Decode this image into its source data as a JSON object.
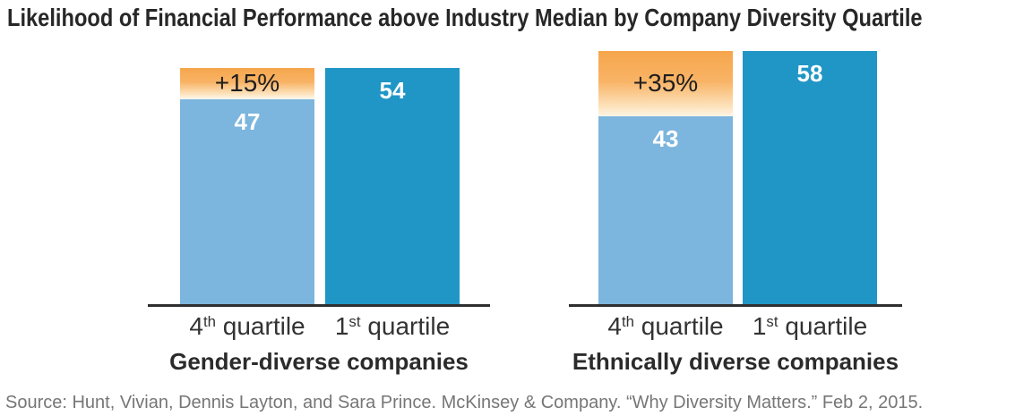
{
  "title": "Likelihood of Financial Performance above Industry Median by Company Diversity Quartile",
  "source": "Source: Hunt, Vivian, Dennis Layton, and Sara Prince. McKinsey & Company. “Why Diversity Matters.” Feb 2, 2015.",
  "colors": {
    "quartile4_bar": "#7cb5dd",
    "quartile1_bar": "#2096c6",
    "delta_gradient_top": "#f6a64c",
    "delta_gradient_bottom": "#ffffff",
    "axis_line": "#2f2f2f",
    "title_text": "#272727",
    "value_text": "#ffffff",
    "delta_text": "#1e1e1e",
    "source_text": "#767676"
  },
  "chart_data": [
    {
      "type": "bar",
      "title": "Gender-diverse companies",
      "categories": [
        "4th quartile",
        "1st quartile"
      ],
      "values": [
        47,
        54
      ],
      "delta_label": "+15%",
      "ylim": [
        0,
        60
      ],
      "bars": [
        {
          "value": 47,
          "value_label": "47",
          "cat_base": "4",
          "cat_sup": "th",
          "cat_word": "quartile"
        },
        {
          "value": 54,
          "value_label": "54",
          "cat_base": "1",
          "cat_sup": "st",
          "cat_word": "quartile"
        }
      ]
    },
    {
      "type": "bar",
      "title": "Ethnically diverse companies",
      "categories": [
        "4th quartile",
        "1st quartile"
      ],
      "values": [
        43,
        58
      ],
      "delta_label": "+35%",
      "ylim": [
        0,
        60
      ],
      "bars": [
        {
          "value": 43,
          "value_label": "43",
          "cat_base": "4",
          "cat_sup": "th",
          "cat_word": "quartile"
        },
        {
          "value": 58,
          "value_label": "58",
          "cat_base": "1",
          "cat_sup": "st",
          "cat_word": "quartile"
        }
      ]
    }
  ]
}
